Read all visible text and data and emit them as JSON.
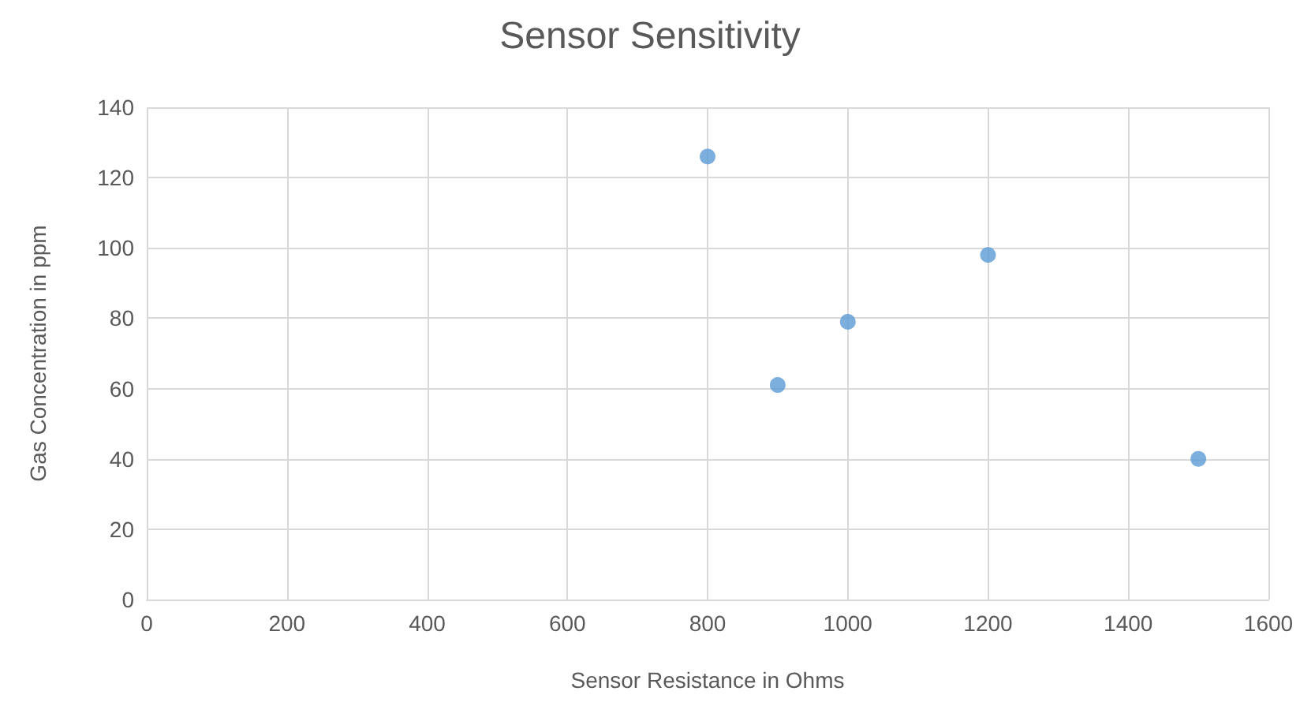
{
  "chart_data": {
    "type": "scatter",
    "title": "Sensor Sensitivity",
    "xlabel": "Sensor Resistance in Ohms",
    "ylabel": "Gas Concentration in ppm",
    "x": [
      800,
      900,
      1000,
      1200,
      1500
    ],
    "values": [
      126,
      61,
      79,
      98,
      40
    ],
    "color": "#5b9bd5",
    "marker": "circle",
    "xlim": [
      0,
      1600
    ],
    "xticks": [
      0,
      200,
      400,
      600,
      800,
      1000,
      1200,
      1400,
      1600
    ],
    "ylim": [
      0,
      140
    ],
    "yticks": [
      0,
      20,
      40,
      60,
      80,
      100,
      120,
      140
    ],
    "grid": true
  }
}
